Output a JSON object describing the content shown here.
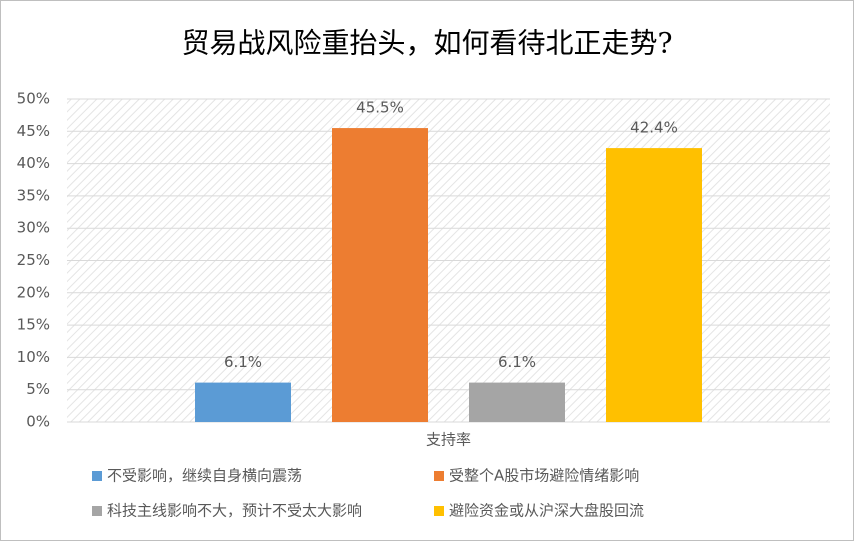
{
  "chart_data": {
    "type": "bar",
    "title": "贸易战风险重抬头，如何看待北正走势?",
    "categories": [
      "支持率"
    ],
    "series": [
      {
        "name": "不受影响，继续自身横向震荡",
        "color": "#5b9bd5",
        "values": [
          6.1
        ],
        "value_labels": [
          "6.1%"
        ]
      },
      {
        "name": "受整个A股市场避险情绪影响",
        "color": "#ed7d31",
        "values": [
          45.5
        ],
        "value_labels": [
          "45.5%"
        ]
      },
      {
        "name": "科技主线影响不大，预计不受太大影响",
        "color": "#a5a5a5",
        "values": [
          6.1
        ],
        "value_labels": [
          "6.1%"
        ]
      },
      {
        "name": "避险资金或从沪深大盘股回流",
        "color": "#ffc000",
        "values": [
          42.4
        ],
        "value_labels": [
          "42.4%"
        ]
      }
    ],
    "ylim": [
      0,
      50
    ],
    "yticks": [
      {
        "value": 0,
        "label": "0%"
      },
      {
        "value": 5,
        "label": "5%"
      },
      {
        "value": 10,
        "label": "10%"
      },
      {
        "value": 15,
        "label": "15%"
      },
      {
        "value": 20,
        "label": "20%"
      },
      {
        "value": 25,
        "label": "25%"
      },
      {
        "value": 30,
        "label": "30%"
      },
      {
        "value": 35,
        "label": "35%"
      },
      {
        "value": 40,
        "label": "40%"
      },
      {
        "value": 45,
        "label": "45%"
      },
      {
        "value": 50,
        "label": "50%"
      }
    ],
    "grid": true,
    "legend": "bottom"
  }
}
